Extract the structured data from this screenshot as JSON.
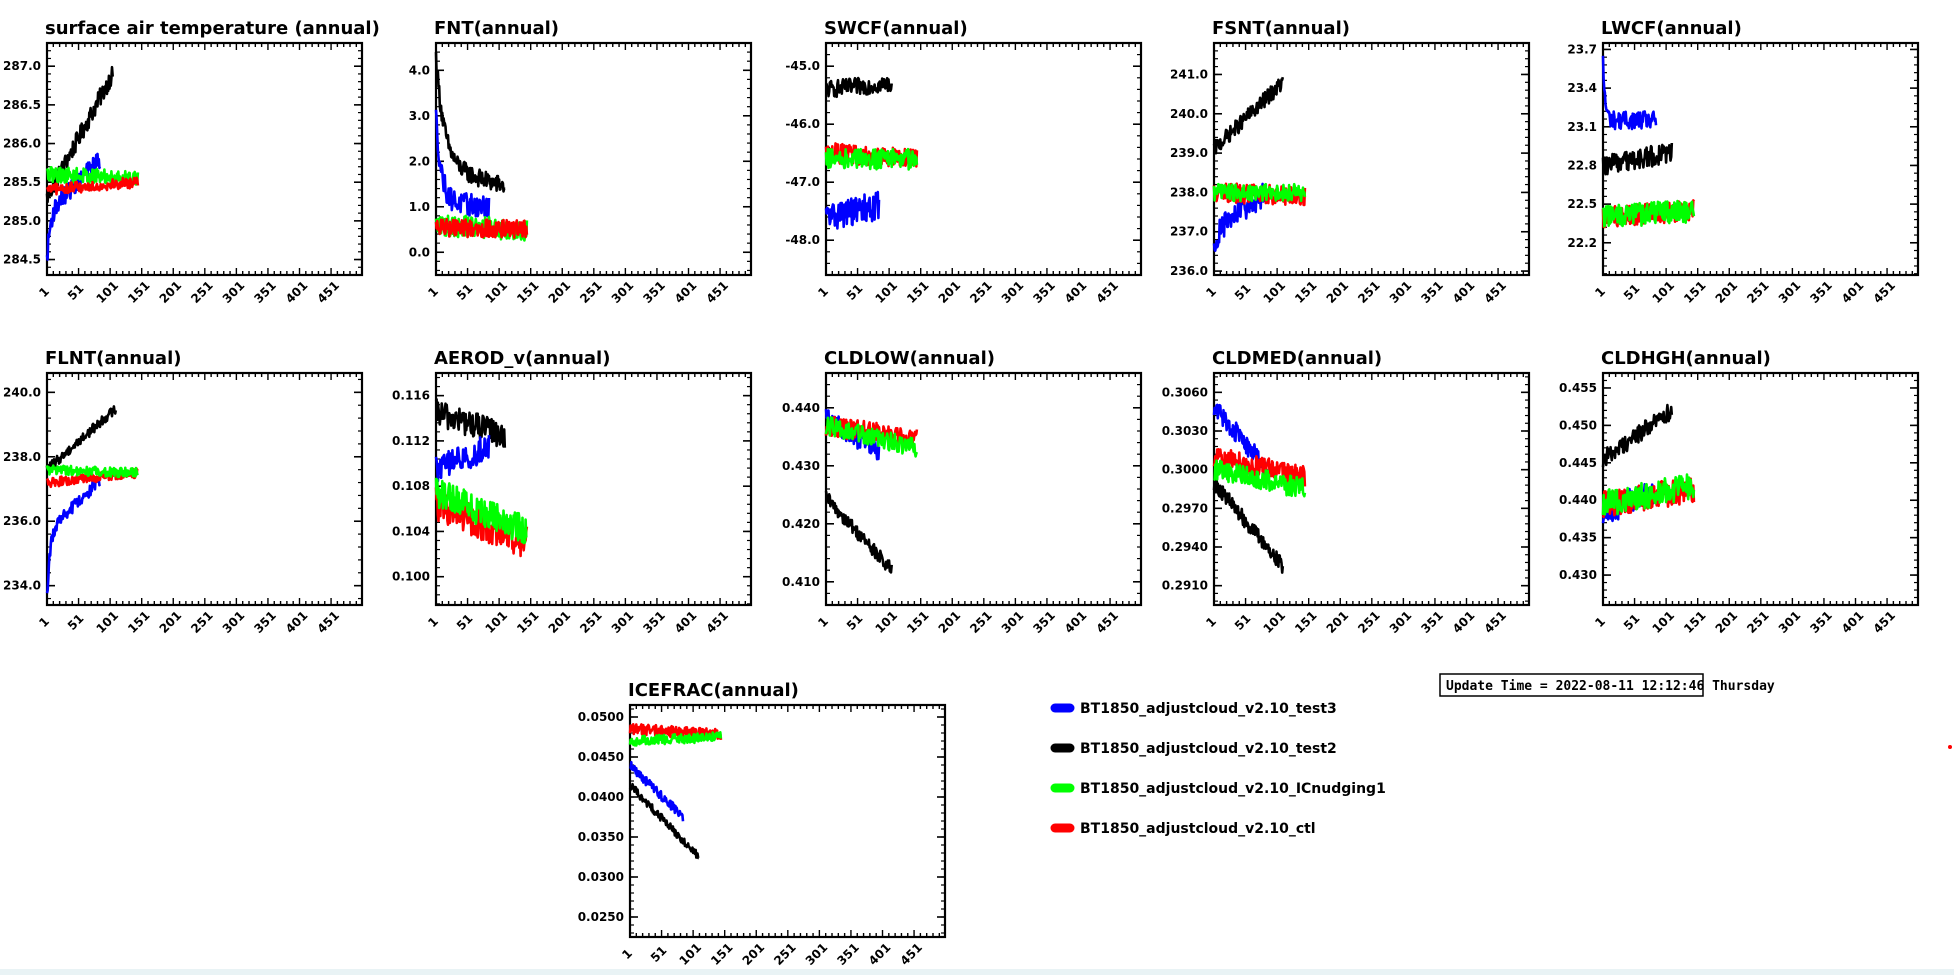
{
  "update_stamp": "Update Time = 2022-08-11 12:12:46 Thursday",
  "legend": [
    {
      "label": "BT1850_adjustcloud_v2.10_test3",
      "color": "#0000ff"
    },
    {
      "label": "BT1850_adjustcloud_v2.10_test2",
      "color": "#000000"
    },
    {
      "label": "BT1850_adjustcloud_v2.10_ICnudging1",
      "color": "#00ff00"
    },
    {
      "label": "BT1850_adjustcloud_v2.10_ctl",
      "color": "#ff0000"
    }
  ],
  "chart_data": [
    {
      "type": "line",
      "title": "surface air temperature (annual)",
      "x_ticks": [
        "1",
        "51",
        "101",
        "151",
        "201",
        "251",
        "301",
        "351",
        "401",
        "451"
      ],
      "xlim": [
        1,
        500
      ],
      "y_ticks": [
        "284.5",
        "285.0",
        "285.5",
        "286.0",
        "286.5",
        "287.0"
      ],
      "ylim": [
        284.3,
        287.3
      ],
      "series": [
        {
          "color": "#000000",
          "n": 105,
          "start": 285.3,
          "end": 286.9,
          "noise": 0.12,
          "decay": 0
        },
        {
          "color": "#0000ff",
          "n": 85,
          "start": 285.1,
          "end": 285.8,
          "noise": 0.12,
          "decay": 0.3,
          "initial": 284.5
        },
        {
          "color": "#00ff00",
          "n": 145,
          "start": 285.6,
          "end": 285.55,
          "noise": 0.1,
          "decay": 0
        },
        {
          "color": "#ff0000",
          "n": 145,
          "start": 285.4,
          "end": 285.5,
          "noise": 0.07,
          "decay": 0
        }
      ]
    },
    {
      "type": "line",
      "title": "FNT(annual)",
      "x_ticks": [
        "1",
        "51",
        "101",
        "151",
        "201",
        "251",
        "301",
        "351",
        "401",
        "451"
      ],
      "xlim": [
        1,
        500
      ],
      "y_ticks": [
        "0.0",
        "1.0",
        "2.0",
        "3.0",
        "4.0"
      ],
      "ylim": [
        -0.5,
        4.6
      ],
      "series": [
        {
          "color": "#000000",
          "n": 110,
          "start": 1.9,
          "end": 1.45,
          "noise": 0.2,
          "decay": 0.6,
          "initial": 4.3
        },
        {
          "color": "#0000ff",
          "n": 85,
          "start": 1.1,
          "end": 1.0,
          "noise": 0.25,
          "decay": 0.5,
          "initial": 3.0
        },
        {
          "color": "#00ff00",
          "n": 145,
          "start": 0.6,
          "end": 0.5,
          "noise": 0.25,
          "decay": 0
        },
        {
          "color": "#ff0000",
          "n": 145,
          "start": 0.55,
          "end": 0.5,
          "noise": 0.2,
          "decay": 0
        }
      ]
    },
    {
      "type": "line",
      "title": "SWCF(annual)",
      "x_ticks": [
        "1",
        "51",
        "101",
        "151",
        "201",
        "251",
        "301",
        "351",
        "401",
        "451"
      ],
      "xlim": [
        1,
        500
      ],
      "y_ticks": [
        "-48.0",
        "-47.0",
        "-46.0",
        "-45.0"
      ],
      "ylim": [
        -48.6,
        -44.6
      ],
      "series": [
        {
          "color": "#000000",
          "n": 105,
          "start": -45.4,
          "end": -45.3,
          "noise": 0.15,
          "decay": 0
        },
        {
          "color": "#0000ff",
          "n": 85,
          "start": -47.6,
          "end": -47.4,
          "noise": 0.25,
          "decay": 0
        },
        {
          "color": "#ff0000",
          "n": 145,
          "start": -46.5,
          "end": -46.6,
          "noise": 0.18,
          "decay": 0
        },
        {
          "color": "#00ff00",
          "n": 145,
          "start": -46.6,
          "end": -46.6,
          "noise": 0.18,
          "decay": 0
        }
      ]
    },
    {
      "type": "line",
      "title": "FSNT(annual)",
      "x_ticks": [
        "1",
        "51",
        "101",
        "151",
        "201",
        "251",
        "301",
        "351",
        "401",
        "451"
      ],
      "xlim": [
        1,
        500
      ],
      "y_ticks": [
        "236.0",
        "237.0",
        "238.0",
        "239.0",
        "240.0",
        "241.0"
      ],
      "ylim": [
        235.9,
        241.8
      ],
      "series": [
        {
          "color": "#000000",
          "n": 110,
          "start": 239.1,
          "end": 240.8,
          "noise": 0.2,
          "decay": 0
        },
        {
          "color": "#0000ff",
          "n": 85,
          "start": 237.0,
          "end": 238.0,
          "noise": 0.3,
          "decay": 0.3,
          "initial": 236.5
        },
        {
          "color": "#ff0000",
          "n": 145,
          "start": 238.0,
          "end": 237.9,
          "noise": 0.25,
          "decay": 0
        },
        {
          "color": "#00ff00",
          "n": 145,
          "start": 238.0,
          "end": 238.0,
          "noise": 0.22,
          "decay": 0
        }
      ]
    },
    {
      "type": "line",
      "title": "LWCF(annual)",
      "x_ticks": [
        "1",
        "51",
        "101",
        "151",
        "201",
        "251",
        "301",
        "351",
        "401",
        "451"
      ],
      "xlim": [
        1,
        500
      ],
      "y_ticks": [
        "22.2",
        "22.5",
        "22.8",
        "23.1",
        "23.4",
        "23.7"
      ],
      "ylim": [
        21.95,
        23.75
      ],
      "series": [
        {
          "color": "#0000ff",
          "n": 85,
          "start": 23.15,
          "end": 23.15,
          "noise": 0.07,
          "decay": 0.2,
          "initial": 23.6
        },
        {
          "color": "#000000",
          "n": 110,
          "start": 22.8,
          "end": 22.9,
          "noise": 0.08,
          "decay": 0
        },
        {
          "color": "#ff0000",
          "n": 145,
          "start": 22.4,
          "end": 22.45,
          "noise": 0.08,
          "decay": 0
        },
        {
          "color": "#00ff00",
          "n": 145,
          "start": 22.4,
          "end": 22.45,
          "noise": 0.09,
          "decay": 0
        }
      ]
    },
    {
      "type": "line",
      "title": "FLNT(annual)",
      "x_ticks": [
        "1",
        "51",
        "101",
        "151",
        "201",
        "251",
        "301",
        "351",
        "401",
        "451"
      ],
      "xlim": [
        1,
        500
      ],
      "y_ticks": [
        "234.0",
        "236.0",
        "238.0",
        "240.0"
      ],
      "ylim": [
        233.4,
        240.6
      ],
      "series": [
        {
          "color": "#000000",
          "n": 110,
          "start": 237.6,
          "end": 239.5,
          "noise": 0.15,
          "decay": 0
        },
        {
          "color": "#0000ff",
          "n": 85,
          "start": 235.6,
          "end": 237.3,
          "noise": 0.2,
          "decay": 0.25,
          "initial": 233.6
        },
        {
          "color": "#ff0000",
          "n": 145,
          "start": 237.2,
          "end": 237.5,
          "noise": 0.15,
          "decay": 0
        },
        {
          "color": "#00ff00",
          "n": 145,
          "start": 237.6,
          "end": 237.5,
          "noise": 0.15,
          "decay": 0
        }
      ]
    },
    {
      "type": "line",
      "title": "AEROD_v(annual)",
      "x_ticks": [
        "1",
        "51",
        "101",
        "151",
        "201",
        "251",
        "301",
        "351",
        "401",
        "451"
      ],
      "xlim": [
        1,
        500
      ],
      "y_ticks": [
        "0.100",
        "0.104",
        "0.108",
        "0.112",
        "0.116"
      ],
      "ylim": [
        0.0975,
        0.118
      ],
      "series": [
        {
          "color": "#000000",
          "n": 110,
          "start": 0.1145,
          "end": 0.1125,
          "noise": 0.0012,
          "decay": 0
        },
        {
          "color": "#0000ff",
          "n": 85,
          "start": 0.1095,
          "end": 0.1115,
          "noise": 0.0012,
          "decay": 0
        },
        {
          "color": "#ff0000",
          "n": 145,
          "start": 0.1065,
          "end": 0.103,
          "noise": 0.0015,
          "decay": 0
        },
        {
          "color": "#00ff00",
          "n": 145,
          "start": 0.1075,
          "end": 0.104,
          "noise": 0.0013,
          "decay": 0
        }
      ]
    },
    {
      "type": "line",
      "title": "CLDLOW(annual)",
      "x_ticks": [
        "1",
        "51",
        "101",
        "151",
        "201",
        "251",
        "301",
        "351",
        "401",
        "451"
      ],
      "xlim": [
        1,
        500
      ],
      "y_ticks": [
        "0.410",
        "0.420",
        "0.430",
        "0.440"
      ],
      "ylim": [
        0.406,
        0.446
      ],
      "series": [
        {
          "color": "#000000",
          "n": 105,
          "start": 0.4245,
          "end": 0.412,
          "noise": 0.0012,
          "decay": 0
        },
        {
          "color": "#0000ff",
          "n": 85,
          "start": 0.438,
          "end": 0.4325,
          "noise": 0.0018,
          "decay": 0
        },
        {
          "color": "#ff0000",
          "n": 145,
          "start": 0.437,
          "end": 0.4345,
          "noise": 0.0018,
          "decay": 0
        },
        {
          "color": "#00ff00",
          "n": 145,
          "start": 0.437,
          "end": 0.433,
          "noise": 0.0016,
          "decay": 0
        }
      ]
    },
    {
      "type": "line",
      "title": "CLDMED(annual)",
      "x_ticks": [
        "1",
        "51",
        "101",
        "151",
        "201",
        "251",
        "301",
        "351",
        "401",
        "451"
      ],
      "xlim": [
        1,
        500
      ],
      "y_ticks": [
        "0.2910",
        "0.2940",
        "0.2970",
        "0.3000",
        "0.3030",
        "0.3060"
      ],
      "ylim": [
        0.2895,
        0.3075
      ],
      "series": [
        {
          "color": "#000000",
          "n": 110,
          "start": 0.299,
          "end": 0.2925,
          "noise": 0.0006,
          "decay": 0
        },
        {
          "color": "#0000ff",
          "n": 85,
          "start": 0.305,
          "end": 0.3,
          "noise": 0.0008,
          "decay": 0
        },
        {
          "color": "#ff0000",
          "n": 145,
          "start": 0.301,
          "end": 0.2995,
          "noise": 0.0008,
          "decay": 0
        },
        {
          "color": "#00ff00",
          "n": 145,
          "start": 0.3,
          "end": 0.2985,
          "noise": 0.0008,
          "decay": 0
        }
      ]
    },
    {
      "type": "line",
      "title": "CLDHGH(annual)",
      "x_ticks": [
        "1",
        "51",
        "101",
        "151",
        "201",
        "251",
        "301",
        "351",
        "401",
        "451"
      ],
      "xlim": [
        1,
        500
      ],
      "y_ticks": [
        "0.430",
        "0.435",
        "0.440",
        "0.445",
        "0.450",
        "0.455"
      ],
      "ylim": [
        0.426,
        0.457
      ],
      "series": [
        {
          "color": "#000000",
          "n": 110,
          "start": 0.4455,
          "end": 0.452,
          "noise": 0.0012,
          "decay": 0
        },
        {
          "color": "#0000ff",
          "n": 85,
          "start": 0.4385,
          "end": 0.441,
          "noise": 0.0018,
          "decay": 0
        },
        {
          "color": "#ff0000",
          "n": 145,
          "start": 0.4395,
          "end": 0.4415,
          "noise": 0.0018,
          "decay": 0
        },
        {
          "color": "#00ff00",
          "n": 145,
          "start": 0.4395,
          "end": 0.442,
          "noise": 0.0018,
          "decay": 0
        }
      ]
    },
    {
      "type": "line",
      "title": "ICEFRAC(annual)",
      "x_ticks": [
        "1",
        "51",
        "101",
        "151",
        "201",
        "251",
        "301",
        "351",
        "401",
        "451"
      ],
      "xlim": [
        1,
        500
      ],
      "y_ticks": [
        "0.0250",
        "0.0300",
        "0.0350",
        "0.0400",
        "0.0450",
        "0.0500"
      ],
      "ylim": [
        0.0225,
        0.0515
      ],
      "series": [
        {
          "color": "#0000ff",
          "n": 85,
          "start": 0.044,
          "end": 0.0375,
          "noise": 0.0006,
          "decay": 0
        },
        {
          "color": "#000000",
          "n": 110,
          "start": 0.0415,
          "end": 0.0325,
          "noise": 0.0005,
          "decay": 0
        },
        {
          "color": "#ff0000",
          "n": 145,
          "start": 0.0485,
          "end": 0.0478,
          "noise": 0.0007,
          "decay": 0
        },
        {
          "color": "#00ff00",
          "n": 145,
          "start": 0.047,
          "end": 0.0475,
          "noise": 0.0006,
          "decay": 0
        }
      ]
    }
  ]
}
